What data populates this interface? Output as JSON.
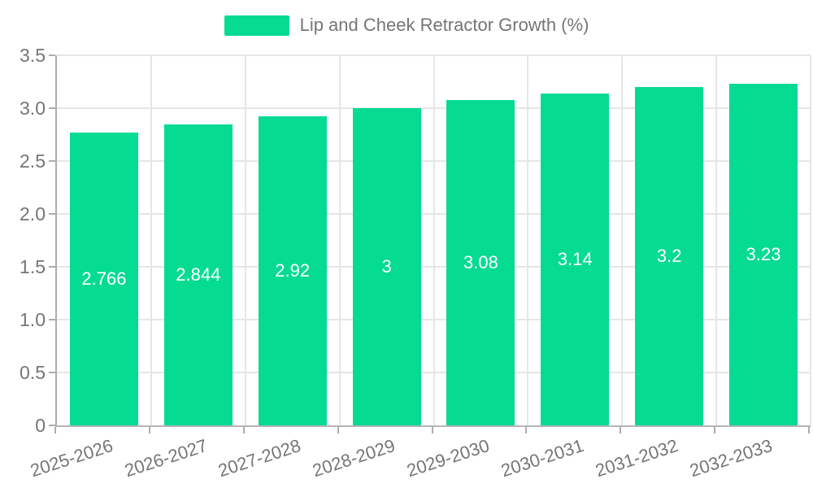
{
  "legend": {
    "label": "Lip and Cheek Retractor Growth (%)",
    "swatch_color": "#06db92"
  },
  "chart_data": {
    "type": "bar",
    "title": "Lip and Cheek Retractor Growth (%)",
    "categories": [
      "2025-2026",
      "2026-2027",
      "2027-2028",
      "2028-2029",
      "2029-2030",
      "2030-2031",
      "2031-2032",
      "2032-2033"
    ],
    "values": [
      2.766,
      2.844,
      2.92,
      3,
      3.08,
      3.14,
      3.2,
      3.23
    ],
    "value_labels": [
      "2.766",
      "2.844",
      "2.92",
      "3",
      "3.08",
      "3.14",
      "3.2",
      "3.23"
    ],
    "xlabel": "",
    "ylabel": "",
    "ylim": [
      0,
      3.5
    ],
    "ytick_step": 0.5,
    "ytick_labels": [
      "0",
      "0.5",
      "1.0",
      "1.5",
      "2.0",
      "2.5",
      "3.0",
      "3.5"
    ],
    "grid": true,
    "legend_position": "top-center",
    "colors": {
      "bar": "#06db92",
      "grid": "#e6e6e6",
      "axis": "#adadad",
      "tick": "#adadad",
      "axis_text": "#757575",
      "value_text": "#ffffff",
      "background": "#ffffff"
    }
  }
}
